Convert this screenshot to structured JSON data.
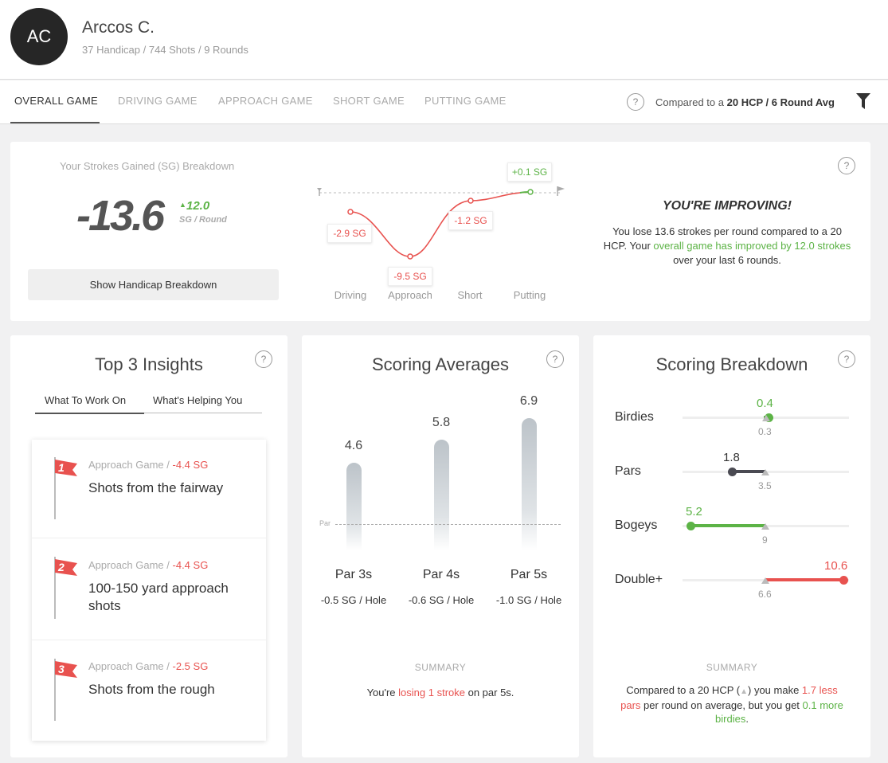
{
  "profile": {
    "initials": "AC",
    "name": "Arccos C.",
    "stats": "37 Handicap / 744 Shots / 9 Rounds"
  },
  "tabs": [
    {
      "label": "OVERALL GAME",
      "active": true
    },
    {
      "label": "DRIVING GAME"
    },
    {
      "label": "APPROACH GAME"
    },
    {
      "label": "SHORT GAME"
    },
    {
      "label": "PUTTING GAME"
    }
  ],
  "compare": {
    "prefix": "Compared to a",
    "target": "20 HCP / 6 Round Avg"
  },
  "help_label": "?",
  "sg_breakdown": {
    "title": "Your Strokes Gained (SG) Breakdown",
    "value": "-13.6",
    "delta": "12.0",
    "unit": "SG / Round",
    "button": "Show Handicap Breakdown",
    "chart": {
      "categories": [
        "Driving",
        "Approach",
        "Short",
        "Putting"
      ],
      "labels": [
        "-2.9 SG",
        "-9.5 SG",
        "-1.2 SG",
        "+0.1 SG"
      ]
    },
    "improve_title": "YOU'RE IMPROVING!",
    "improve_text_1": "You lose 13.6 strokes per round compared to a 20 HCP. Your ",
    "improve_text_2": "overall game has improved by 12.0 strokes",
    "improve_text_3": " over your last 6 rounds."
  },
  "insights": {
    "title": "Top 3 Insights",
    "subtabs": [
      "What To Work On",
      "What's Helping You"
    ],
    "items": [
      {
        "num": "1",
        "cat": "Approach Game /",
        "sg": "-4.4 SG",
        "text": "Shots from the fairway"
      },
      {
        "num": "2",
        "cat": "Approach Game /",
        "sg": "-4.4 SG",
        "text": "100-150 yard approach shots"
      },
      {
        "num": "3",
        "cat": "Approach Game /",
        "sg": "-2.5 SG",
        "text": "Shots from the rough"
      }
    ]
  },
  "scoring_averages": {
    "title": "Scoring Averages",
    "par_line_label": "Par",
    "bars": [
      {
        "value": "4.6",
        "label": "Par 3s",
        "sg": "-0.5 SG / Hole",
        "level": 4.6
      },
      {
        "value": "5.8",
        "label": "Par 4s",
        "sg": "-0.6 SG / Hole",
        "level": 5.8
      },
      {
        "value": "6.9",
        "label": "Par 5s",
        "sg": "-1.0 SG / Hole",
        "level": 6.9
      }
    ],
    "summary_label": "SUMMARY",
    "summary_1": "You're ",
    "summary_2": "losing 1 stroke",
    "summary_3": " on par 5s."
  },
  "scoring_breakdown": {
    "title": "Scoring Breakdown",
    "rows": [
      {
        "label": "Birdies",
        "value": "0.4",
        "avg": "0.3"
      },
      {
        "label": "Pars",
        "value": "1.8",
        "avg": "3.5"
      },
      {
        "label": "Bogeys",
        "value": "5.2",
        "avg": "9"
      },
      {
        "label": "Double+",
        "value": "10.6",
        "avg": "6.6"
      }
    ],
    "summary_label": "SUMMARY",
    "summary_1": "Compared to a 20 HCP (",
    "summary_2": ") you make ",
    "summary_3": "1.7 less pars",
    "summary_4": " per round on average, but you get ",
    "summary_5": "0.1 more birdies",
    "summary_6": "."
  },
  "colors": {
    "green": "#5cb346",
    "red": "#e8524f",
    "dark": "#4a4a52"
  }
}
